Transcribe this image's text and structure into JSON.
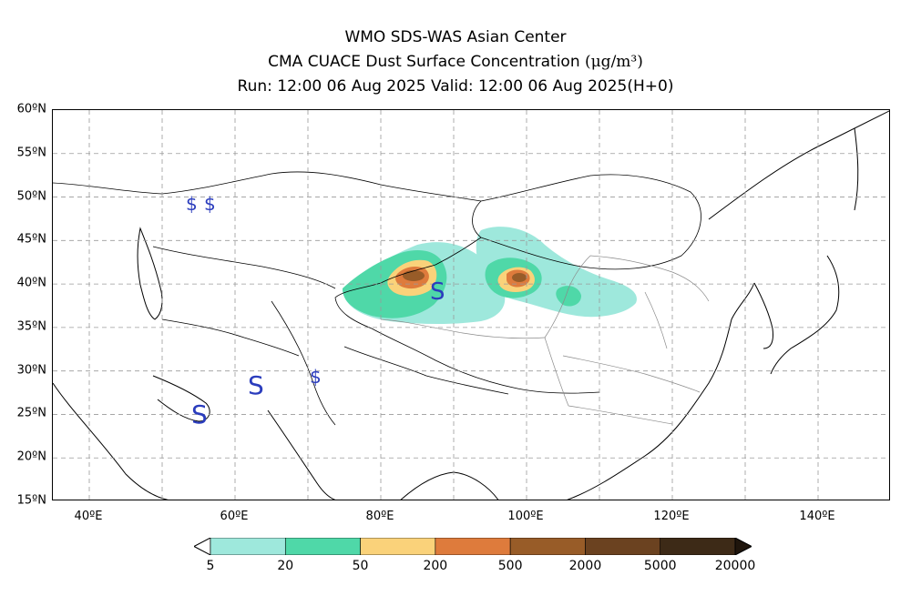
{
  "header": {
    "line1": "WMO SDS-WAS Asian Center",
    "line2_text": "CMA CUACE Dust Surface Concentration",
    "line2_unit": "(μg/m³)",
    "line3": "Run: 12:00 06 Aug 2025    Valid: 12:00 06 Aug 2025(H+0)"
  },
  "map": {
    "lat_labels": [
      "60ºN",
      "55ºN",
      "50ºN",
      "45ºN",
      "40ºN",
      "35ºN",
      "30ºN",
      "25ºN",
      "20ºN",
      "15ºN"
    ],
    "lon_labels": [
      "40ºE",
      "60ºE",
      "80ºE",
      "100ºE",
      "120ºE",
      "140ºE"
    ],
    "lat_range": [
      15,
      60
    ],
    "lon_range": [
      35,
      150
    ],
    "gridlines": true,
    "station_symbol": "$",
    "station_color": "#2b3dbd",
    "sandstorm_symbol": "S"
  },
  "legend": {
    "labels": [
      "5",
      "20",
      "50",
      "200",
      "500",
      "2000",
      "5000",
      "20000"
    ],
    "colors": [
      "#9ee8dc",
      "#4fd8a8",
      "#fad27a",
      "#de7b3c",
      "#985c28",
      "#6b4220",
      "#3d2a17"
    ],
    "under_color": "#ffffff",
    "over_color": "#1f150c"
  }
}
